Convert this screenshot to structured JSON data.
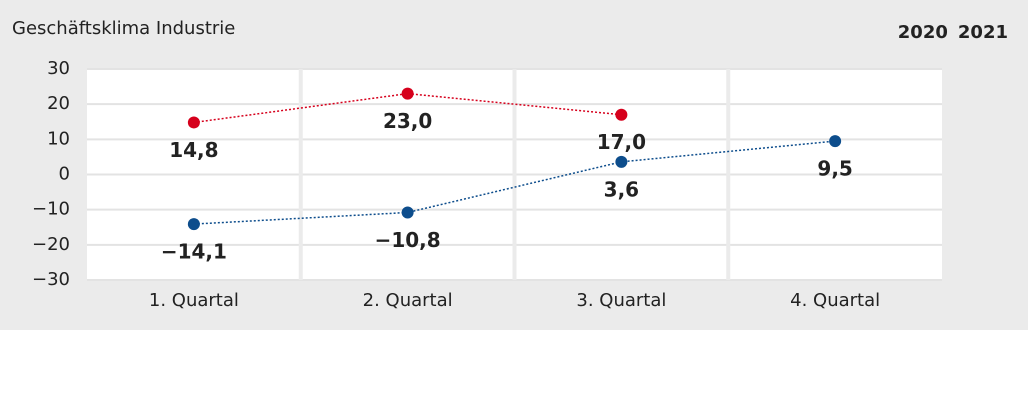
{
  "chart_data": {
    "type": "line",
    "title": "Geschäftsklima Industrie",
    "categories": [
      "1. Quartal",
      "2. Quartal",
      "3. Quartal",
      "4. Quartal"
    ],
    "series": [
      {
        "name": "2020",
        "color": "#0d4d8c",
        "values": [
          -14.1,
          -10.8,
          3.6,
          9.5
        ],
        "value_labels": [
          "−14,1",
          "−10,8",
          "3,6",
          "9,5"
        ]
      },
      {
        "name": "2021",
        "color": "#d6001c",
        "values": [
          14.8,
          23.0,
          17.0,
          null
        ],
        "value_labels": [
          "14,8",
          "23,0",
          "17,0",
          null
        ]
      }
    ],
    "ylim": [
      -30,
      30
    ],
    "yticks": [
      30,
      20,
      10,
      0,
      {
        "value": -10,
        "label": "−10"
      },
      {
        "value": -20,
        "label": "−20"
      },
      {
        "value": -30,
        "label": "−30"
      }
    ],
    "grid": true,
    "legend": "top-right"
  }
}
